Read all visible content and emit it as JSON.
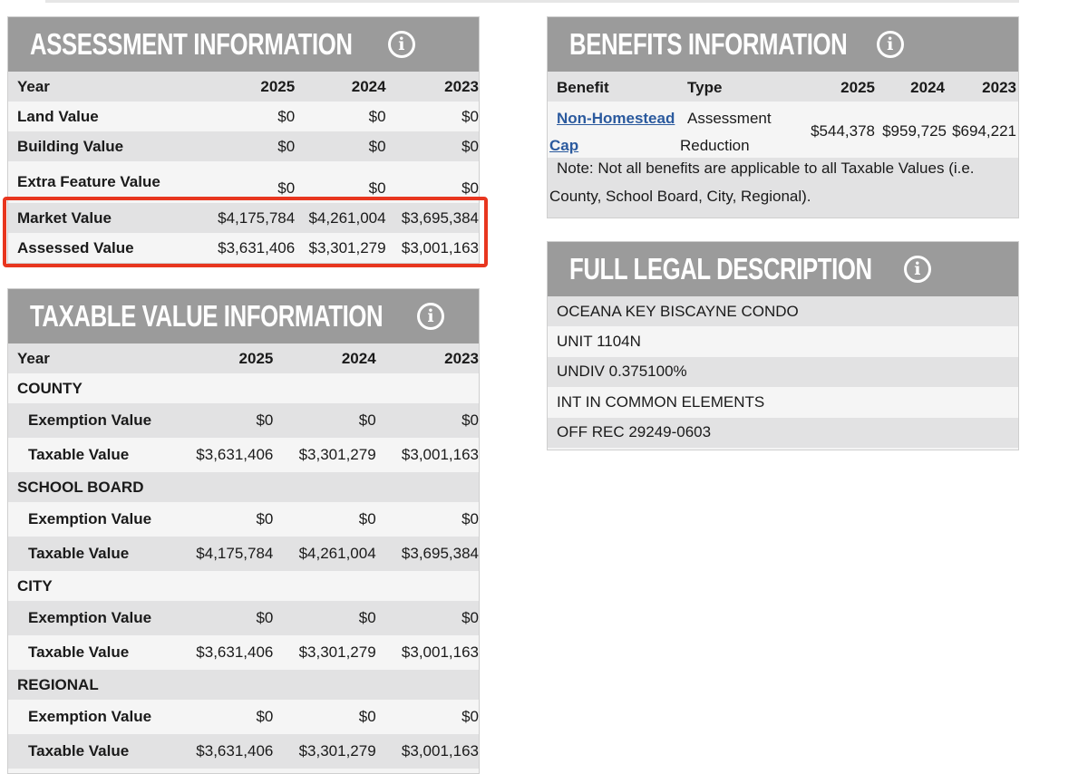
{
  "assessment": {
    "title": "ASSESSMENT INFORMATION",
    "columns": [
      "Year",
      "2025",
      "2024",
      "2023"
    ],
    "rows": [
      {
        "label": "Land Value",
        "values": [
          "$0",
          "$0",
          "$0"
        ]
      },
      {
        "label": "Building Value",
        "values": [
          "$0",
          "$0",
          "$0"
        ]
      },
      {
        "label": "Extra Feature Value",
        "values": [
          "$0",
          "$0",
          "$0"
        ]
      },
      {
        "label": "Market Value",
        "values": [
          "$4,175,784",
          "$4,261,004",
          "$3,695,384"
        ]
      },
      {
        "label": "Assessed Value",
        "values": [
          "$3,631,406",
          "$3,301,279",
          "$3,001,163"
        ]
      }
    ]
  },
  "taxable": {
    "title": "TAXABLE VALUE INFORMATION",
    "columns": [
      "Year",
      "2025",
      "2024",
      "2023"
    ],
    "sections": [
      {
        "name": "COUNTY",
        "exemption_label": "Exemption Value",
        "exemption": [
          "$0",
          "$0",
          "$0"
        ],
        "taxable_label": "Taxable Value",
        "taxable": [
          "$3,631,406",
          "$3,301,279",
          "$3,001,163"
        ]
      },
      {
        "name": "SCHOOL BOARD",
        "exemption_label": "Exemption Value",
        "exemption": [
          "$0",
          "$0",
          "$0"
        ],
        "taxable_label": "Taxable Value",
        "taxable": [
          "$4,175,784",
          "$4,261,004",
          "$3,695,384"
        ]
      },
      {
        "name": "CITY",
        "exemption_label": "Exemption Value",
        "exemption": [
          "$0",
          "$0",
          "$0"
        ],
        "taxable_label": "Taxable Value",
        "taxable": [
          "$3,631,406",
          "$3,301,279",
          "$3,001,163"
        ]
      },
      {
        "name": "REGIONAL",
        "exemption_label": "Exemption Value",
        "exemption": [
          "$0",
          "$0",
          "$0"
        ],
        "taxable_label": "Taxable Value",
        "taxable": [
          "$3,631,406",
          "$3,301,279",
          "$3,001,163"
        ]
      }
    ]
  },
  "benefits": {
    "title": "BENEFITS INFORMATION",
    "columns": [
      "Benefit",
      "Type",
      "2025",
      "2024",
      "2023"
    ],
    "row": {
      "benefit_part1": "Non-Homestead",
      "benefit_part2": "Cap",
      "type_part1": "Assessment",
      "type_part2": "Reduction",
      "values": [
        "$544,378",
        "$959,725",
        "$694,221"
      ]
    },
    "note_line1": "Note: Not all benefits are applicable to all Taxable Values (i.e.",
    "note_line2": "County, School Board, City, Regional)."
  },
  "legal": {
    "title": "FULL LEGAL DESCRIPTION",
    "lines": [
      "OCEANA KEY BISCAYNE CONDO",
      "UNIT 1104N",
      "UNDIV 0.375100%",
      "INT IN COMMON ELEMENTS",
      "OFF REC 29249-0603"
    ]
  },
  "icons": {
    "info": "info-icon"
  },
  "colors": {
    "header_bg": "#9b9b9b",
    "highlight": "#e8361f",
    "link": "#2b5a9e"
  }
}
